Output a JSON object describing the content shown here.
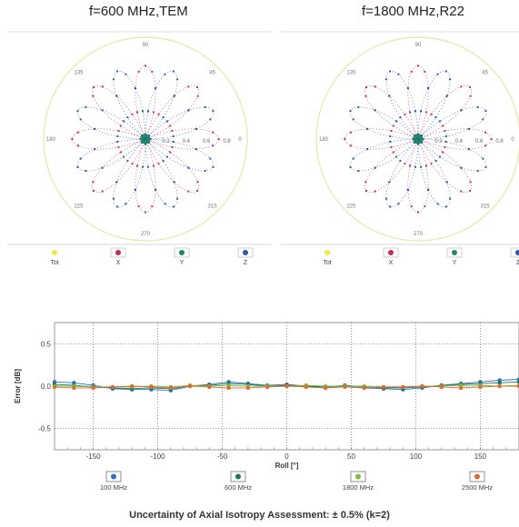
{
  "chart_data": [
    {
      "type": "polar",
      "title": "f=600 MHz,TEM",
      "angle_labels": [
        "0",
        "45",
        "90",
        "135",
        "180",
        "225",
        "270",
        "315"
      ],
      "radial_ticks": [
        0.2,
        0.4,
        0.6,
        0.8
      ],
      "radial_tick_labels": [
        "0.2",
        "0.4",
        "0.6",
        "0.8"
      ],
      "rlim": [
        0,
        1.0
      ],
      "legend": [
        "Tot",
        "X",
        "Y",
        "Z"
      ],
      "legend_placement": "bottom",
      "series": [
        {
          "name": "X",
          "color": "#cc2a5a",
          "petals": 4,
          "peak": 0.72,
          "phase_deg": 0
        },
        {
          "name": "Y",
          "color": "#1f8a5f",
          "petals": 4,
          "peak": 0.05,
          "phase_deg": 0
        },
        {
          "name": "Z",
          "color": "#2c55b8",
          "petals": 4,
          "peak": 0.72,
          "phase_deg": 22.5
        }
      ]
    },
    {
      "type": "polar",
      "title": "f=1800 MHz,R22",
      "angle_labels": [
        "0",
        "45",
        "90",
        "135",
        "180",
        "225",
        "270",
        "315"
      ],
      "radial_ticks": [
        0.2,
        0.4,
        0.6,
        0.8
      ],
      "radial_tick_labels": [
        "0.2",
        "0.4",
        "0.6",
        "0.8"
      ],
      "rlim": [
        0,
        1.0
      ],
      "legend": [
        "Tot",
        "X",
        "Y",
        "Z"
      ],
      "legend_placement": "bottom",
      "series": [
        {
          "name": "X",
          "color": "#cc2a5a",
          "petals": 4,
          "peak": 0.72,
          "phase_deg": 0
        },
        {
          "name": "Y",
          "color": "#1f8a5f",
          "petals": 4,
          "peak": 0.05,
          "phase_deg": 0
        },
        {
          "name": "Z",
          "color": "#2c55b8",
          "petals": 4,
          "peak": 0.72,
          "phase_deg": 22.5
        }
      ]
    },
    {
      "type": "line",
      "title": "",
      "xlabel": "Roll [°]",
      "ylabel": "Error [dB]",
      "xlim": [
        -180,
        180
      ],
      "ylim": [
        -0.75,
        0.75
      ],
      "x_ticks": [
        -150,
        -100,
        -50,
        0,
        50,
        100,
        150
      ],
      "y_ticks": [
        0.5,
        0.0,
        -0.5
      ],
      "y_tick_labels": [
        "0.5",
        "0.0",
        "-0.5"
      ],
      "grid": true,
      "legend_placement": "bottom",
      "x": [
        -180,
        -165,
        -150,
        -135,
        -120,
        -105,
        -90,
        -75,
        -60,
        -45,
        -30,
        -15,
        0,
        15,
        30,
        45,
        60,
        75,
        90,
        105,
        120,
        135,
        150,
        165,
        180
      ],
      "series": [
        {
          "name": "100 MHz",
          "color": "#2f6fc7",
          "values": [
            0.05,
            0.04,
            0.01,
            -0.03,
            -0.04,
            -0.04,
            -0.05,
            0.0,
            0.02,
            0.05,
            0.03,
            0.01,
            0.02,
            0.0,
            -0.02,
            0.0,
            -0.02,
            -0.03,
            -0.04,
            -0.02,
            0.01,
            0.03,
            0.05,
            0.07,
            0.08
          ]
        },
        {
          "name": "600 MHz",
          "color": "#177a5a",
          "values": [
            0.02,
            0.01,
            -0.01,
            -0.02,
            -0.03,
            -0.02,
            -0.03,
            0.0,
            0.01,
            0.03,
            0.02,
            0.0,
            0.01,
            0.0,
            -0.01,
            0.01,
            -0.01,
            -0.02,
            -0.02,
            -0.01,
            0.01,
            0.02,
            0.03,
            0.04,
            0.05
          ]
        },
        {
          "name": "1800 MHz",
          "color": "#7dbb3c",
          "values": [
            0.0,
            0.0,
            -0.01,
            -0.01,
            -0.01,
            0.0,
            -0.01,
            0.01,
            0.0,
            0.01,
            0.0,
            0.0,
            0.0,
            0.01,
            0.0,
            0.0,
            0.0,
            -0.01,
            -0.01,
            0.0,
            0.0,
            0.01,
            0.01,
            0.0,
            0.01
          ]
        },
        {
          "name": "2500 MHz",
          "color": "#e06a33",
          "values": [
            -0.01,
            -0.02,
            -0.02,
            -0.01,
            0.0,
            -0.01,
            -0.02,
            0.0,
            -0.01,
            -0.02,
            -0.02,
            -0.01,
            0.0,
            -0.01,
            -0.02,
            -0.01,
            -0.02,
            -0.01,
            -0.01,
            0.0,
            -0.01,
            -0.02,
            -0.01,
            0.0,
            0.0
          ]
        }
      ]
    }
  ],
  "footer": "Uncertainty of Axial Isotropy Assessment: ± 0.5% (k=2)"
}
